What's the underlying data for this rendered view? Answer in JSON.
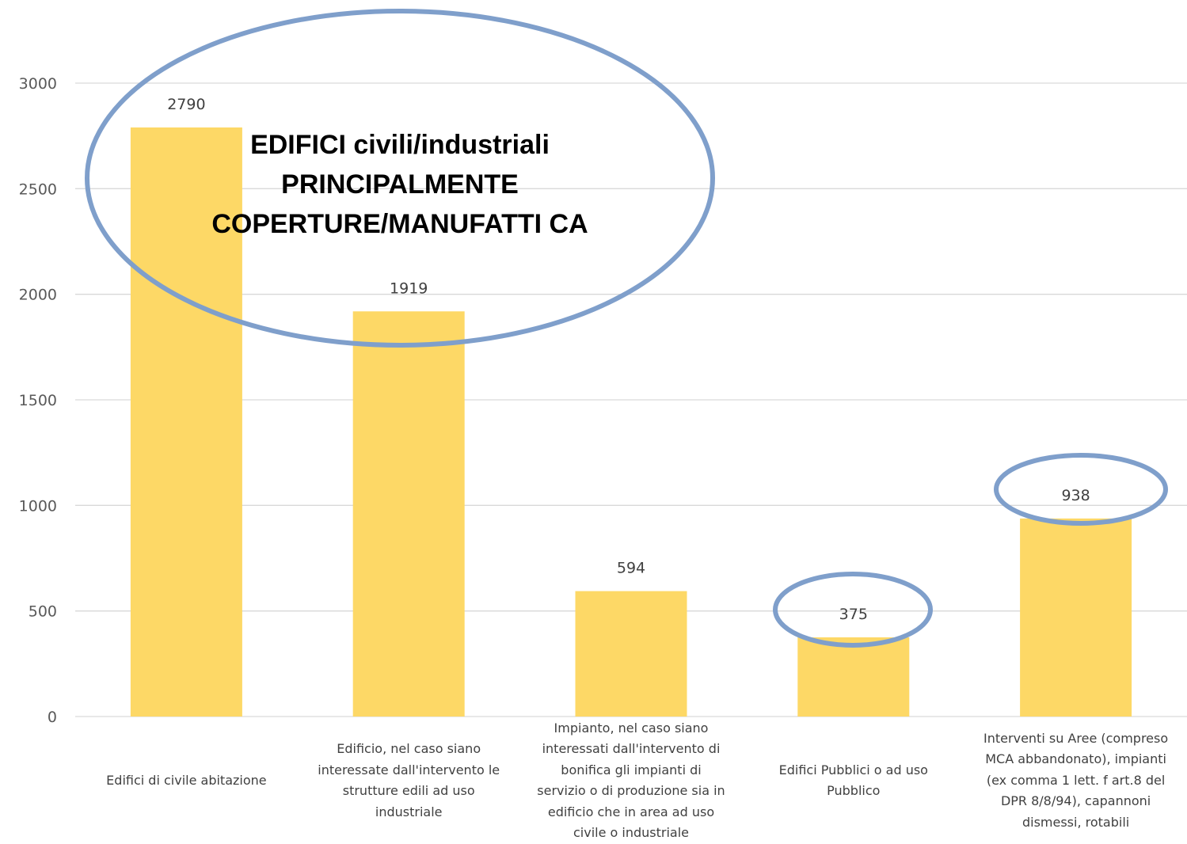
{
  "chart_data": {
    "type": "bar",
    "categories": [
      "Edifici di civile abitazione",
      "Edificio, nel caso siano interessate dall'intervento le strutture edili ad uso industriale",
      "Impianto, nel caso siano interessati dall'intervento di bonifica gli impianti di servizio o di produzione sia in edificio che in area ad uso civile o industriale",
      "Edifici Pubblici o ad uso Pubblico",
      "Interventi su Aree (compreso MCA abbandonato), impianti (ex comma 1 lett. f art.8 del DPR 8/8/94), capannoni dismessi, rotabili"
    ],
    "category_lines": [
      [
        "Edifici di civile abitazione"
      ],
      [
        "Edificio, nel caso siano",
        "interessate dall'intervento le",
        "strutture edili ad uso",
        "industriale"
      ],
      [
        "Impianto, nel caso siano",
        "interessati dall'intervento di",
        "bonifica gli impianti di",
        "servizio o di produzione sia in",
        "edificio che in area ad uso",
        "civile o industriale"
      ],
      [
        "Edifici Pubblici o ad uso",
        "Pubblico"
      ],
      [
        "Interventi su Aree (compreso",
        "MCA abbandonato), impianti",
        "(ex comma 1 lett. f art.8 del",
        "DPR 8/8/94), capannoni",
        "dismessi, rotabili"
      ]
    ],
    "values": [
      2790,
      1919,
      594,
      375,
      938
    ],
    "data_labels": [
      "2790",
      "1919",
      "594",
      "375",
      "938"
    ],
    "yticks": [
      "0",
      "500",
      "1000",
      "1500",
      "2000",
      "2500",
      "3000"
    ],
    "ylim": [
      0,
      3000
    ],
    "grid": true,
    "title": "",
    "xlabel": "",
    "ylabel": "",
    "colors": {
      "bar": "#FDD866",
      "highlight_ellipse": "#7F9FCB",
      "grid": "#D9D9D9"
    },
    "annotations": {
      "big_ellipse_text": [
        "EDIFICI civili/industriali",
        "PRINCIPALMENTE",
        "COPERTURE/MANUFATTI CA"
      ],
      "circled_values": [
        "375",
        "938"
      ]
    }
  }
}
